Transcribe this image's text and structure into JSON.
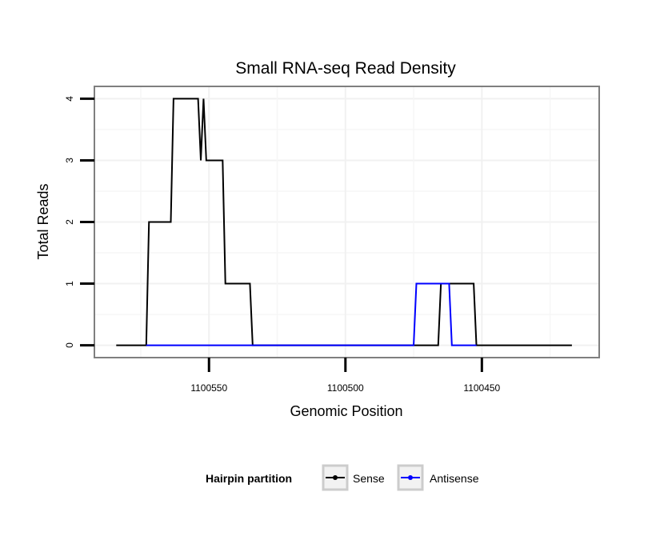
{
  "chart_data": {
    "type": "line",
    "title": "Small RNA-seq Read Density",
    "xlabel": "Genomic Position",
    "ylabel": "Total Reads",
    "x_reversed": true,
    "xlim": [
      1100592,
      1100407
    ],
    "ylim": [
      -0.2,
      4.2
    ],
    "x_ticks": [
      1100550,
      1100500,
      1100450
    ],
    "y_ticks": [
      0,
      1,
      2,
      3,
      4
    ],
    "grid": true,
    "legend": {
      "title": "Hairpin partition",
      "position": "bottom",
      "entries": [
        "Sense",
        "Antisense"
      ]
    },
    "series": [
      {
        "name": "Sense",
        "color": "#000000",
        "points": [
          [
            1100584,
            0
          ],
          [
            1100573,
            0
          ],
          [
            1100572,
            2
          ],
          [
            1100564,
            2
          ],
          [
            1100563,
            4
          ],
          [
            1100554,
            4
          ],
          [
            1100553,
            3
          ],
          [
            1100552,
            4
          ],
          [
            1100551,
            3
          ],
          [
            1100545,
            3
          ],
          [
            1100544,
            1
          ],
          [
            1100535,
            1
          ],
          [
            1100534,
            0
          ],
          [
            1100466,
            0
          ],
          [
            1100465,
            1
          ],
          [
            1100453,
            1
          ],
          [
            1100452,
            0
          ],
          [
            1100417,
            0
          ]
        ]
      },
      {
        "name": "Antisense",
        "color": "#0000ff",
        "points": [
          [
            1100573,
            0
          ],
          [
            1100534,
            0
          ],
          [
            1100534,
            0
          ],
          [
            1100475,
            0
          ],
          [
            1100474,
            1
          ],
          [
            1100462,
            1
          ],
          [
            1100461,
            0
          ],
          [
            1100452,
            0
          ]
        ]
      }
    ]
  }
}
